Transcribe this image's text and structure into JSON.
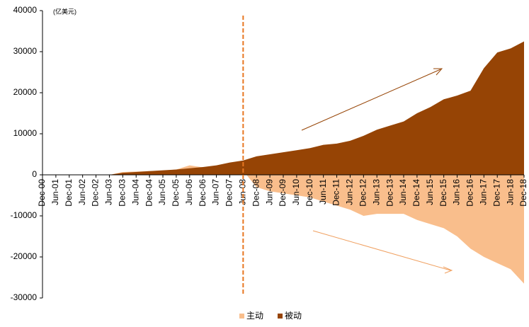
{
  "chart_data": {
    "type": "area",
    "unit_label": "(亿美元)",
    "categories": [
      "Dec-00",
      "Jun-01",
      "Dec-01",
      "Jun-02",
      "Dec-02",
      "Jun-03",
      "Dec-03",
      "Jun-04",
      "Dec-04",
      "Jun-05",
      "Dec-05",
      "Jun-06",
      "Dec-06",
      "Jun-07",
      "Dec-07",
      "Jun-08",
      "Dec-08",
      "Jun-09",
      "Dec-09",
      "Jun-10",
      "Dec-10",
      "Jun-11",
      "Dec-11",
      "Jun-12",
      "Dec-12",
      "Jun-13",
      "Dec-13",
      "Jun-14",
      "Dec-14",
      "Jun-15",
      "Dec-15",
      "Jun-16",
      "Dec-16",
      "Jun-17",
      "Dec-17",
      "Jun-18",
      "Dec-18"
    ],
    "series": [
      {
        "name": "主动",
        "color": "#f9be8c",
        "values": [
          0,
          0,
          0,
          0,
          0,
          0,
          700,
          800,
          900,
          1000,
          1300,
          2300,
          1800,
          2000,
          2500,
          1000,
          -3000,
          -4000,
          -4500,
          -5000,
          -5500,
          -6500,
          -7500,
          -8500,
          -10000,
          -9500,
          -9500,
          -9500,
          -11000,
          -12000,
          -13000,
          -15000,
          -18000,
          -20000,
          -21500,
          -23000,
          -26500
        ]
      },
      {
        "name": "被动",
        "color": "#964405",
        "values": [
          0,
          0,
          0,
          0,
          0,
          0,
          500,
          700,
          900,
          1100,
          1300,
          1600,
          1900,
          2300,
          3000,
          3500,
          4500,
          5000,
          5500,
          6000,
          6500,
          7300,
          7600,
          8300,
          9500,
          11000,
          12000,
          13000,
          15000,
          16500,
          18400,
          19300,
          20500,
          26000,
          29800,
          30800,
          32500
        ]
      }
    ],
    "ylim": [
      -30000,
      40000
    ],
    "yticks": [
      -30000,
      -20000,
      -10000,
      0,
      10000,
      20000,
      30000,
      40000
    ],
    "marker_category": "Jun-08",
    "marker_color": "#e87722"
  }
}
